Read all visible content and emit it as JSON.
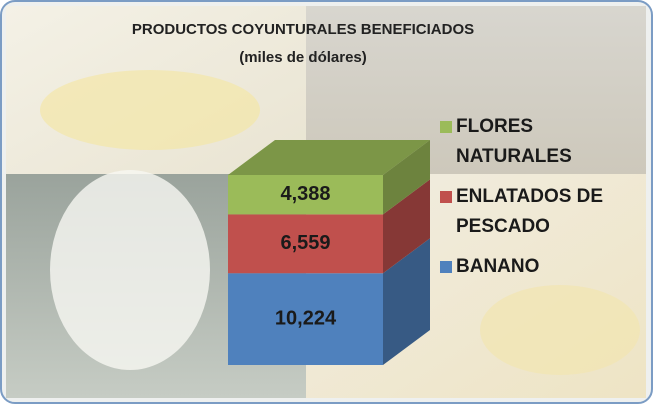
{
  "chart_data": {
    "type": "bar",
    "stacked": true,
    "title": "PRODUCTOS COYUNTURALES BENEFICIADOS",
    "subtitle": "(miles de dólares)",
    "categories": [
      null
    ],
    "series": [
      {
        "name": "BANANO",
        "color": "#4f81bd",
        "values": [
          10224
        ],
        "value_labels": [
          "10,224"
        ]
      },
      {
        "name": "ENLATADOS DE PESCADO",
        "color": "#c0504d",
        "values": [
          6559
        ],
        "value_labels": [
          "6,559"
        ]
      },
      {
        "name": "FLORES NATURALES",
        "color": "#9bbb59",
        "values": [
          4388
        ],
        "value_labels": [
          "4,388"
        ]
      }
    ]
  }
}
